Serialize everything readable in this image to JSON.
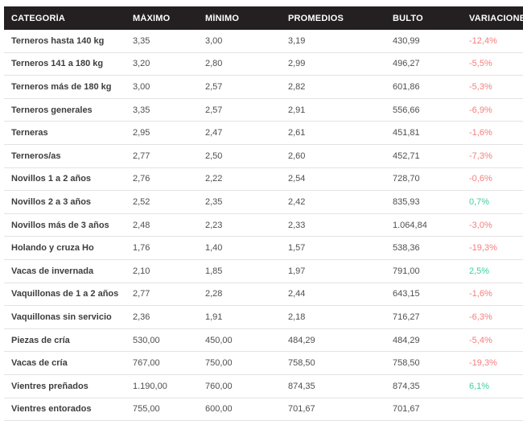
{
  "colors": {
    "header_bg": "#242021",
    "header_text": "#ffffff",
    "category_text": "#3d3d3d",
    "value_text": "#4f4f4f",
    "positive": "#3dcfa4",
    "negative": "#f57e7e",
    "divider": "#e3e3e3"
  },
  "table": {
    "columns": [
      "CATEGORÍA",
      "MÁXIMO",
      "MÍNIMO",
      "PROMEDIOS",
      "BULTO",
      "VARIACIONES"
    ],
    "rows": [
      {
        "categoria": "Terneros hasta 140 kg",
        "maximo": "3,35",
        "minimo": "3,00",
        "promedios": "3,19",
        "bulto": "430,99",
        "variacion": "-12,4%",
        "trend": "negative"
      },
      {
        "categoria": "Terneros 141 a 180 kg",
        "maximo": "3,20",
        "minimo": "2,80",
        "promedios": "2,99",
        "bulto": "496,27",
        "variacion": "-5,5%",
        "trend": "negative"
      },
      {
        "categoria": "Terneros más de 180 kg",
        "maximo": "3,00",
        "minimo": "2,57",
        "promedios": "2,82",
        "bulto": "601,86",
        "variacion": "-5,3%",
        "trend": "negative"
      },
      {
        "categoria": "Terneros generales",
        "maximo": "3,35",
        "minimo": "2,57",
        "promedios": "2,91",
        "bulto": "556,66",
        "variacion": "-6,9%",
        "trend": "negative"
      },
      {
        "categoria": "Terneras",
        "maximo": "2,95",
        "minimo": "2,47",
        "promedios": "2,61",
        "bulto": "451,81",
        "variacion": "-1,6%",
        "trend": "negative"
      },
      {
        "categoria": "Terneros/as",
        "maximo": "2,77",
        "minimo": "2,50",
        "promedios": "2,60",
        "bulto": "452,71",
        "variacion": "-7,3%",
        "trend": "negative"
      },
      {
        "categoria": "Novillos 1 a 2 años",
        "maximo": "2,76",
        "minimo": "2,22",
        "promedios": "2,54",
        "bulto": "728,70",
        "variacion": "-0,6%",
        "trend": "negative"
      },
      {
        "categoria": "Novillos 2 a 3 años",
        "maximo": "2,52",
        "minimo": "2,35",
        "promedios": "2,42",
        "bulto": "835,93",
        "variacion": "0,7%",
        "trend": "positive"
      },
      {
        "categoria": "Novillos más de 3 años",
        "maximo": "2,48",
        "minimo": "2,23",
        "promedios": "2,33",
        "bulto": "1.064,84",
        "variacion": "-3,0%",
        "trend": "negative"
      },
      {
        "categoria": "Holando y cruza Ho",
        "maximo": "1,76",
        "minimo": "1,40",
        "promedios": "1,57",
        "bulto": "538,36",
        "variacion": "-19,3%",
        "trend": "negative"
      },
      {
        "categoria": "Vacas de invernada",
        "maximo": "2,10",
        "minimo": "1,85",
        "promedios": "1,97",
        "bulto": "791,00",
        "variacion": "2,5%",
        "trend": "positive"
      },
      {
        "categoria": "Vaquillonas de 1 a 2 años",
        "maximo": "2,77",
        "minimo": "2,28",
        "promedios": "2,44",
        "bulto": "643,15",
        "variacion": "-1,6%",
        "trend": "negative"
      },
      {
        "categoria": "Vaquillonas sin servicio",
        "maximo": "2,36",
        "minimo": "1,91",
        "promedios": "2,18",
        "bulto": "716,27",
        "variacion": "-6,3%",
        "trend": "negative"
      },
      {
        "categoria": "Piezas de cría",
        "maximo": "530,00",
        "minimo": "450,00",
        "promedios": "484,29",
        "bulto": "484,29",
        "variacion": "-5,4%",
        "trend": "negative"
      },
      {
        "categoria": "Vacas de cría",
        "maximo": "767,00",
        "minimo": "750,00",
        "promedios": "758,50",
        "bulto": "758,50",
        "variacion": "-19,3%",
        "trend": "negative"
      },
      {
        "categoria": "Vientres preñados",
        "maximo": "1.190,00",
        "minimo": "760,00",
        "promedios": "874,35",
        "bulto": "874,35",
        "variacion": "6,1%",
        "trend": "positive"
      },
      {
        "categoria": "Vientres entorados",
        "maximo": "755,00",
        "minimo": "600,00",
        "promedios": "701,67",
        "bulto": "701,67",
        "variacion": "",
        "trend": ""
      }
    ]
  }
}
